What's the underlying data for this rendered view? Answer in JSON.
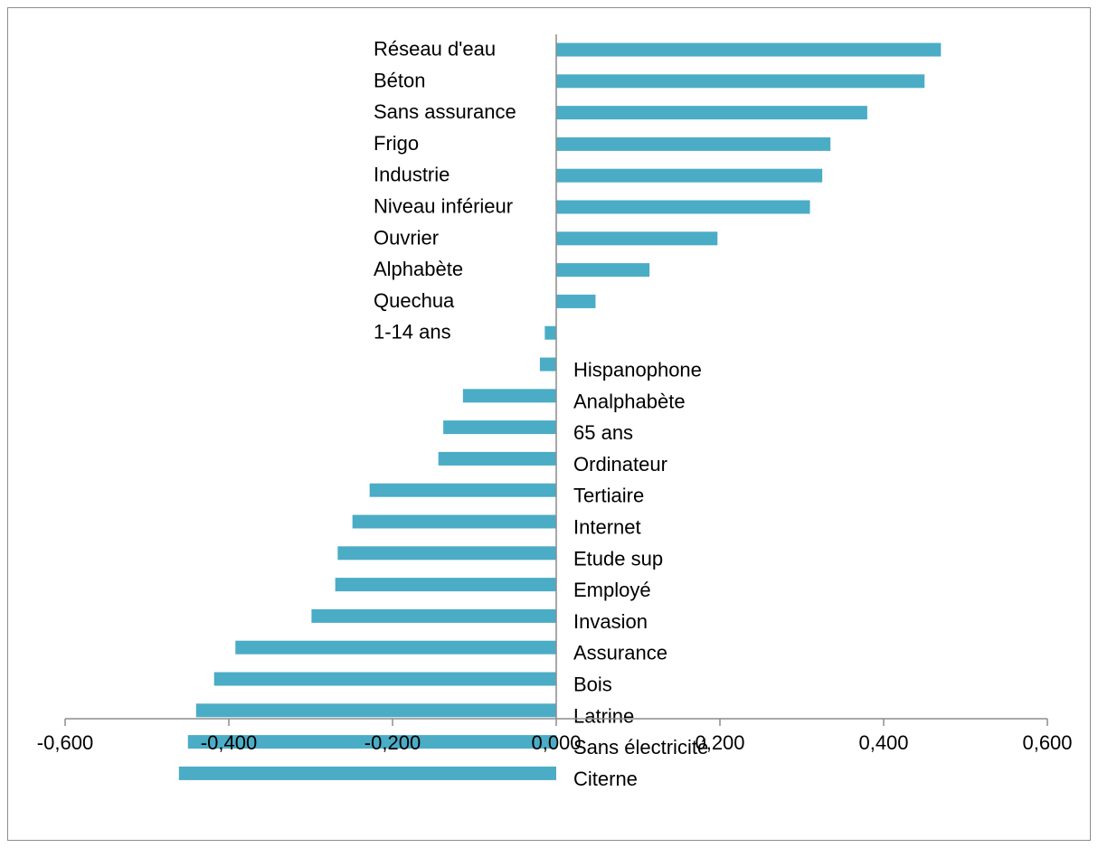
{
  "chart_data": {
    "type": "bar",
    "orientation": "horizontal",
    "title": "",
    "xlabel": "",
    "ylabel": "",
    "xlim": [
      -0.6,
      0.6
    ],
    "x_ticks": [
      "-0,600",
      "-0,400",
      "-0,200",
      "0,000",
      "0,200",
      "0,400",
      "0,600"
    ],
    "x_tick_values": [
      -0.6,
      -0.4,
      -0.2,
      0.0,
      0.2,
      0.4,
      0.6
    ],
    "grid": false,
    "legend": "none",
    "bar_color": "#4bacc6",
    "categories": [
      "Réseau d'eau",
      "Béton",
      "Sans assurance",
      "Frigo",
      "Industrie",
      "Niveau inférieur",
      "Ouvrier",
      "Alphabète",
      "Quechua",
      "1-14 ans",
      "Hispanophone",
      "Analphabète",
      "65 ans",
      "Ordinateur",
      "Tertiaire",
      "Internet",
      "Etude sup",
      "Employé",
      "Invasion",
      "Assurance",
      "Bois",
      "Latrine",
      "Sans électricité",
      "Citerne"
    ],
    "values": [
      0.47,
      0.45,
      0.38,
      0.335,
      0.325,
      0.31,
      0.197,
      0.114,
      0.048,
      -0.014,
      -0.02,
      -0.114,
      -0.138,
      -0.144,
      -0.228,
      -0.249,
      -0.267,
      -0.27,
      -0.299,
      -0.392,
      -0.418,
      -0.44,
      -0.45,
      -0.461
    ]
  }
}
